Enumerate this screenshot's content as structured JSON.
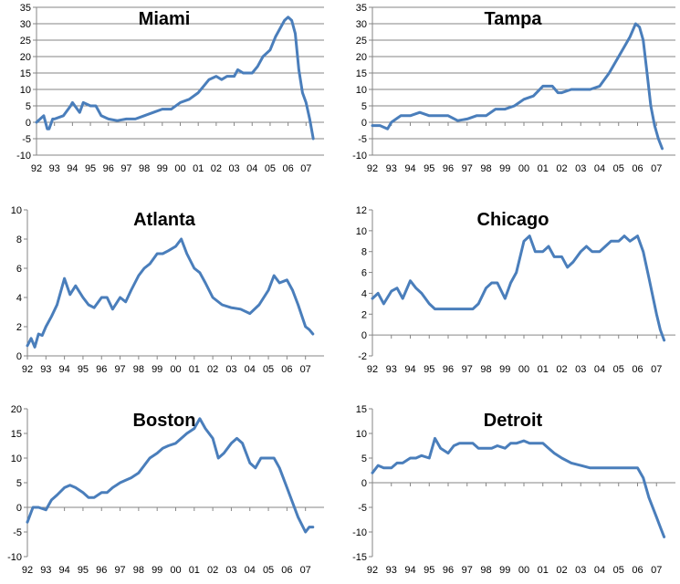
{
  "line_color": "#4a7ebb",
  "grid_color": "#868686",
  "chart_data": [
    {
      "type": "line",
      "title": "Miami",
      "xlabel": "",
      "ylabel": "",
      "x_ticks": [
        "92",
        "93",
        "94",
        "95",
        "96",
        "97",
        "98",
        "99",
        "00",
        "01",
        "02",
        "03",
        "04",
        "05",
        "06",
        "07"
      ],
      "ylim": [
        -10,
        35
      ],
      "y_ticks": [
        -10,
        -5,
        0,
        5,
        10,
        15,
        20,
        25,
        30,
        35
      ],
      "grid": true,
      "series": [
        {
          "x": [
            92.0,
            92.4,
            92.6,
            92.7,
            92.9,
            93.0,
            93.5,
            93.9,
            94.0,
            94.4,
            94.6,
            95.0,
            95.3,
            95.6,
            96.0,
            96.5,
            97.0,
            97.5,
            98.0,
            98.5,
            99.0,
            99.5,
            100.0,
            100.5,
            101.0,
            101.3,
            101.6,
            102.0,
            102.3,
            102.6,
            103.0,
            103.2,
            103.5,
            104.0,
            104.3,
            104.6,
            105.0,
            105.3,
            105.6,
            105.8,
            106.0,
            106.2,
            106.4,
            106.6,
            106.8,
            107.0,
            107.2,
            107.4
          ],
          "y": [
            0,
            2,
            -2,
            -2,
            1,
            1,
            2,
            5,
            6,
            3,
            6,
            5,
            5,
            2,
            1,
            0.5,
            1,
            1,
            2,
            3,
            4,
            4,
            6,
            7,
            9,
            11,
            13,
            14,
            13,
            14,
            14,
            16,
            15,
            15,
            17,
            20,
            22,
            26,
            29,
            31,
            32,
            31,
            27,
            16,
            9,
            6,
            1,
            -5
          ]
        }
      ]
    },
    {
      "type": "line",
      "title": "Tampa",
      "xlabel": "",
      "ylabel": "",
      "x_ticks": [
        "92",
        "93",
        "94",
        "95",
        "96",
        "97",
        "98",
        "99",
        "00",
        "01",
        "02",
        "03",
        "04",
        "05",
        "06",
        "07"
      ],
      "ylim": [
        -10,
        35
      ],
      "y_ticks": [
        -10,
        -5,
        0,
        5,
        10,
        15,
        20,
        25,
        30,
        35
      ],
      "grid": true,
      "series": [
        {
          "x": [
            92.0,
            92.4,
            92.8,
            93.0,
            93.5,
            94.0,
            94.5,
            95.0,
            95.5,
            96.0,
            96.5,
            97.0,
            97.5,
            98.0,
            98.5,
            99.0,
            99.5,
            100.0,
            100.5,
            101.0,
            101.5,
            101.8,
            102.0,
            102.5,
            103.0,
            103.5,
            104.0,
            104.5,
            105.0,
            105.3,
            105.6,
            105.9,
            106.1,
            106.3,
            106.5,
            106.7,
            106.9,
            107.1,
            107.3
          ],
          "y": [
            -1,
            -1,
            -2,
            0,
            2,
            2,
            3,
            2,
            2,
            2,
            0.5,
            1,
            2,
            2,
            4,
            4,
            5,
            7,
            8,
            11,
            11,
            9,
            9,
            10,
            10,
            10,
            11,
            15,
            20,
            23,
            26,
            30,
            29,
            25,
            15,
            5,
            -1,
            -5,
            -8
          ]
        }
      ]
    },
    {
      "type": "line",
      "title": "Atlanta",
      "xlabel": "",
      "ylabel": "",
      "x_ticks": [
        "92",
        "93",
        "94",
        "95",
        "96",
        "97",
        "98",
        "99",
        "00",
        "01",
        "02",
        "03",
        "04",
        "05",
        "06",
        "07"
      ],
      "ylim": [
        0,
        10
      ],
      "y_ticks": [
        0,
        2,
        4,
        6,
        8,
        10
      ],
      "grid": false,
      "series": [
        {
          "x": [
            92.0,
            92.2,
            92.4,
            92.6,
            92.8,
            93.0,
            93.3,
            93.6,
            94.0,
            94.3,
            94.6,
            95.0,
            95.3,
            95.6,
            96.0,
            96.3,
            96.6,
            97.0,
            97.3,
            97.6,
            98.0,
            98.3,
            98.6,
            99.0,
            99.3,
            99.6,
            100.0,
            100.3,
            100.6,
            101.0,
            101.3,
            101.6,
            102.0,
            102.5,
            103.0,
            103.5,
            104.0,
            104.5,
            105.0,
            105.3,
            105.6,
            106.0,
            106.3,
            106.6,
            107.0,
            107.2,
            107.4
          ],
          "y": [
            0.7,
            1.2,
            0.6,
            1.5,
            1.4,
            2,
            2.7,
            3.5,
            5.3,
            4.2,
            4.8,
            4,
            3.5,
            3.3,
            4,
            4,
            3.2,
            4,
            3.7,
            4.5,
            5.5,
            6,
            6.3,
            7,
            7,
            7.2,
            7.5,
            8,
            7,
            6,
            5.7,
            5,
            4,
            3.5,
            3.3,
            3.2,
            2.9,
            3.5,
            4.5,
            5.5,
            5,
            5.2,
            4.5,
            3.5,
            2,
            1.8,
            1.5
          ]
        }
      ]
    },
    {
      "type": "line",
      "title": "Chicago",
      "xlabel": "",
      "ylabel": "",
      "x_ticks": [
        "92",
        "93",
        "94",
        "95",
        "96",
        "97",
        "98",
        "99",
        "00",
        "01",
        "02",
        "03",
        "04",
        "05",
        "06",
        "07"
      ],
      "ylim": [
        -2,
        12
      ],
      "y_ticks": [
        -2,
        0,
        2,
        4,
        6,
        8,
        10,
        12
      ],
      "grid": false,
      "series": [
        {
          "x": [
            92.0,
            92.3,
            92.6,
            93.0,
            93.3,
            93.6,
            94.0,
            94.3,
            94.6,
            95.0,
            95.3,
            95.6,
            96.0,
            96.3,
            96.6,
            97.0,
            97.3,
            97.6,
            98.0,
            98.3,
            98.6,
            99.0,
            99.3,
            99.6,
            100.0,
            100.3,
            100.6,
            101.0,
            101.3,
            101.6,
            102.0,
            102.3,
            102.6,
            103.0,
            103.3,
            103.6,
            104.0,
            104.3,
            104.6,
            105.0,
            105.3,
            105.6,
            106.0,
            106.3,
            106.6,
            107.0,
            107.2,
            107.4
          ],
          "y": [
            3.5,
            4,
            3,
            4.2,
            4.5,
            3.5,
            5.2,
            4.5,
            4,
            3,
            2.5,
            2.5,
            2.5,
            2.5,
            2.5,
            2.5,
            2.5,
            3,
            4.5,
            5,
            5,
            3.5,
            5,
            6,
            9,
            9.5,
            8,
            8,
            8.5,
            7.5,
            7.5,
            6.5,
            7,
            8,
            8.5,
            8,
            8,
            8.5,
            9,
            9,
            9.5,
            9,
            9.5,
            8,
            5.5,
            2,
            0.5,
            -0.5
          ]
        }
      ]
    },
    {
      "type": "line",
      "title": "Boston",
      "xlabel": "",
      "ylabel": "",
      "x_ticks": [
        "92",
        "93",
        "94",
        "95",
        "96",
        "97",
        "98",
        "99",
        "00",
        "01",
        "02",
        "03",
        "04",
        "05",
        "06",
        "07"
      ],
      "ylim": [
        -10,
        20
      ],
      "y_ticks": [
        -10,
        -5,
        0,
        5,
        10,
        15,
        20
      ],
      "grid": false,
      "series": [
        {
          "x": [
            92.0,
            92.3,
            92.6,
            93.0,
            93.3,
            93.6,
            94.0,
            94.3,
            94.6,
            95.0,
            95.3,
            95.6,
            96.0,
            96.3,
            96.6,
            97.0,
            97.3,
            97.6,
            98.0,
            98.3,
            98.6,
            99.0,
            99.3,
            99.6,
            100.0,
            100.3,
            100.6,
            101.0,
            101.3,
            101.6,
            102.0,
            102.3,
            102.6,
            103.0,
            103.3,
            103.6,
            104.0,
            104.3,
            104.6,
            105.0,
            105.3,
            105.6,
            106.0,
            106.3,
            106.6,
            107.0,
            107.2,
            107.4
          ],
          "y": [
            -3,
            0,
            0,
            -0.5,
            1.5,
            2.5,
            4,
            4.5,
            4,
            3,
            2,
            2,
            3,
            3,
            4,
            5,
            5.5,
            6,
            7,
            8.5,
            10,
            11,
            12,
            12.5,
            13,
            14,
            15,
            16,
            18,
            16,
            14,
            10,
            11,
            13,
            14,
            13,
            9,
            8,
            10,
            10,
            10,
            8,
            4,
            1,
            -2,
            -5,
            -4,
            -4
          ]
        }
      ]
    },
    {
      "type": "line",
      "title": "Detroit",
      "xlabel": "",
      "ylabel": "",
      "x_ticks": [
        "92",
        "93",
        "94",
        "95",
        "96",
        "97",
        "98",
        "99",
        "00",
        "01",
        "02",
        "03",
        "04",
        "05",
        "06",
        "07"
      ],
      "ylim": [
        -15,
        15
      ],
      "y_ticks": [
        -15,
        -10,
        -5,
        0,
        5,
        10,
        15
      ],
      "grid": false,
      "series": [
        {
          "x": [
            92.0,
            92.3,
            92.6,
            93.0,
            93.3,
            93.6,
            94.0,
            94.3,
            94.6,
            95.0,
            95.3,
            95.6,
            96.0,
            96.3,
            96.6,
            97.0,
            97.3,
            97.6,
            98.0,
            98.3,
            98.6,
            99.0,
            99.3,
            99.6,
            100.0,
            100.3,
            100.6,
            101.0,
            101.3,
            101.6,
            102.0,
            102.5,
            103.0,
            103.5,
            104.0,
            104.5,
            105.0,
            105.5,
            106.0,
            106.3,
            106.6,
            107.0,
            107.2,
            107.4
          ],
          "y": [
            2,
            3.5,
            3,
            3,
            4,
            4,
            5,
            5,
            5.5,
            5,
            9,
            7,
            6,
            7.5,
            8,
            8,
            8,
            7,
            7,
            7,
            7.5,
            7,
            8,
            8,
            8.5,
            8,
            8,
            8,
            7,
            6,
            5,
            4,
            3.5,
            3,
            3,
            3,
            3,
            3,
            3,
            1,
            -3,
            -7,
            -9,
            -11
          ]
        }
      ]
    }
  ]
}
